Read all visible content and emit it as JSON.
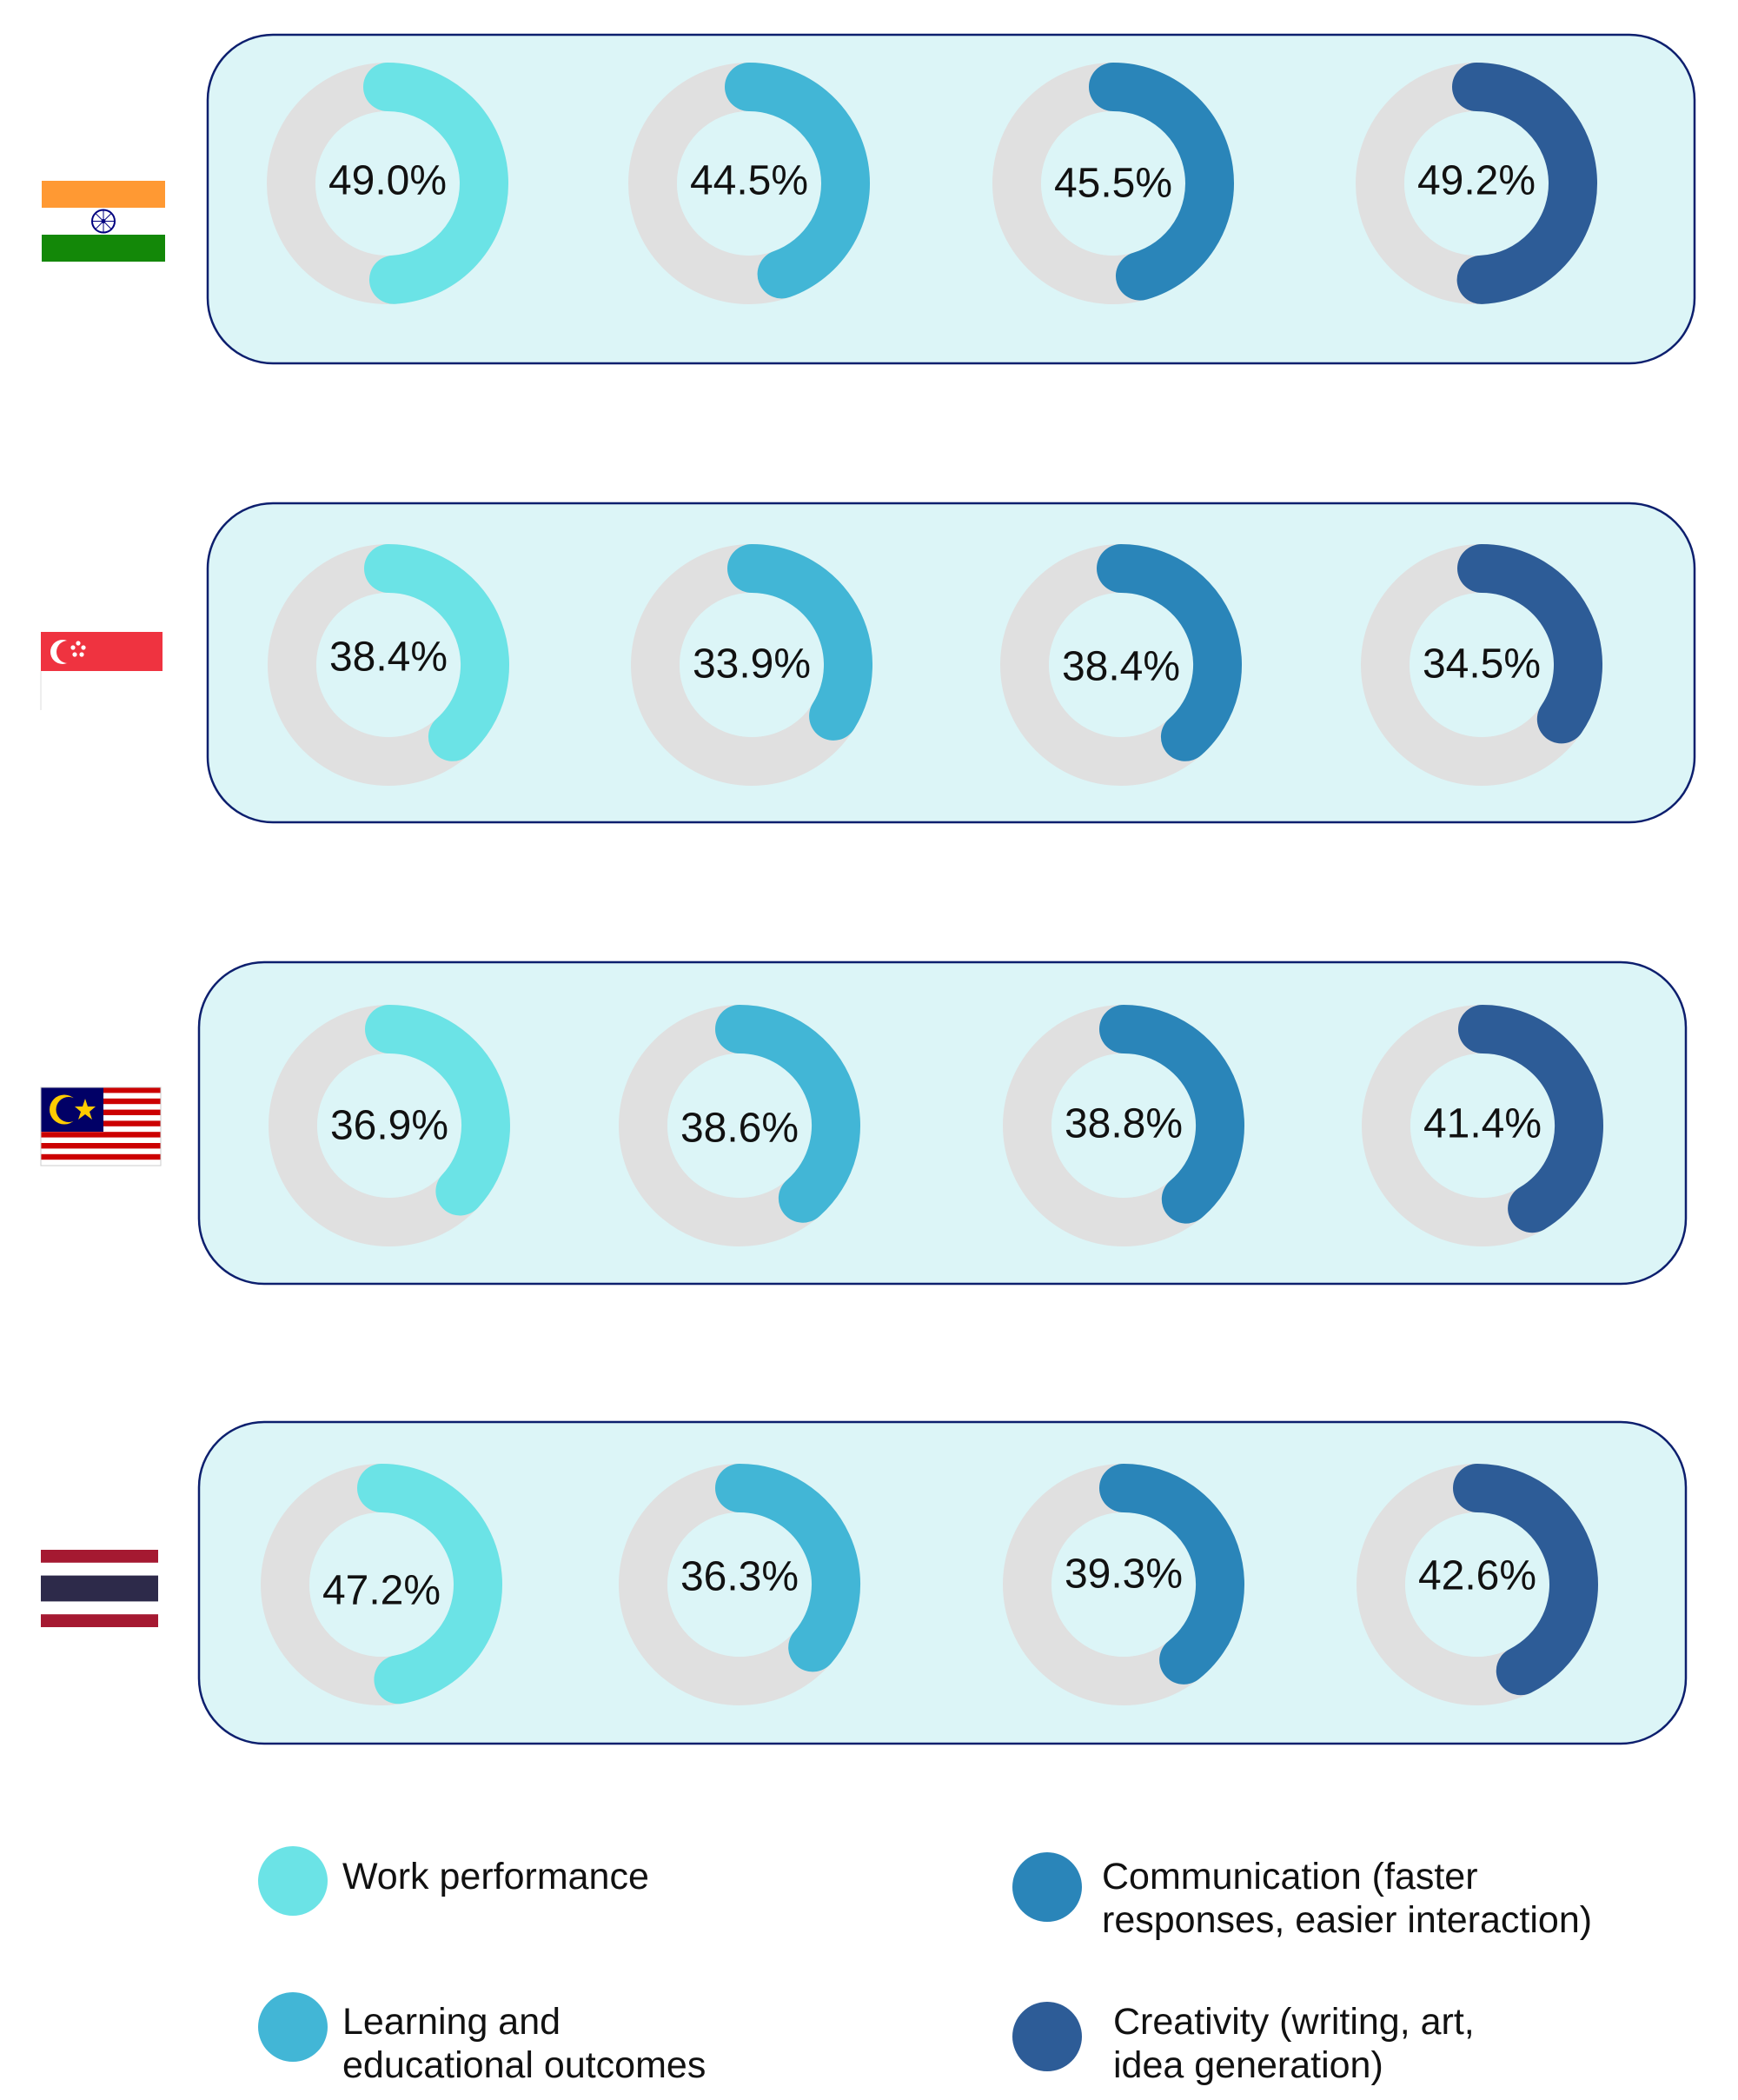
{
  "chart_data": {
    "type": "donut-grid",
    "colors": {
      "panel_fill": "#dcf5f7",
      "panel_stroke": "#0d1f6e",
      "track": "#e0e0e0",
      "inner": "#dcf5f7"
    },
    "categories": [
      {
        "name": "Work performance",
        "color": "#6be3e6"
      },
      {
        "name": "Learning and educational outcomes",
        "color": "#42b6d6"
      },
      {
        "name": "Communication (faster responses, easier interaction)",
        "color": "#2a85b9"
      },
      {
        "name": "Creativity (writing, art, idea generation)",
        "color": "#2d5c97"
      }
    ],
    "rows": [
      {
        "country": "India",
        "flag": "india-flag-icon",
        "labels": [
          "49.0%",
          "44.5%",
          "45.5%",
          "49.2%"
        ],
        "values": [
          49.0,
          44.5,
          45.5,
          49.2
        ]
      },
      {
        "country": "Singapore",
        "flag": "singapore-flag-icon",
        "labels": [
          "38.4%",
          "33.9%",
          "38.4%",
          "34.5%"
        ],
        "values": [
          38.4,
          33.9,
          38.4,
          34.5
        ]
      },
      {
        "country": "Malaysia",
        "flag": "malaysia-flag-icon",
        "labels": [
          "36.9%",
          "38.6%",
          "38.8%",
          "41.4%"
        ],
        "values": [
          36.9,
          38.6,
          38.8,
          41.4
        ]
      },
      {
        "country": "Thailand",
        "flag": "thailand-flag-icon",
        "labels": [
          "47.2%",
          "36.3%",
          "39.3%",
          "42.6%"
        ],
        "values": [
          47.2,
          36.3,
          39.3,
          42.6
        ]
      }
    ],
    "legend": [
      {
        "lines": [
          "Work performance"
        ],
        "color": "#6be3e6"
      },
      {
        "lines": [
          "Communication (faster",
          "responses, easier interaction)"
        ],
        "color": "#2a85b9"
      },
      {
        "lines": [
          "Learning and",
          "educational outcomes"
        ],
        "color": "#42b6d6"
      },
      {
        "lines": [
          "Creativity (writing, art,",
          "idea generation)"
        ],
        "color": "#2d5c97"
      }
    ]
  }
}
